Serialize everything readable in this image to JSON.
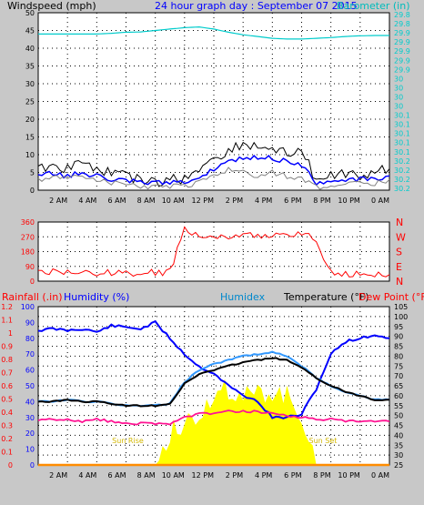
{
  "chart_data": [
    {
      "type": "line",
      "title": "24 hour graph day : September 07 2015",
      "left_axis_label": "Windspeed (mph)",
      "right_axis_label": "Barometer (in)",
      "x_tick_labels": [
        "2 AM",
        "4 AM",
        "6 AM",
        "8 AM",
        "10 AM",
        "12 PM",
        "2 PM",
        "4 PM",
        "6 PM",
        "8 PM",
        "10 PM",
        "0 AM"
      ],
      "left_ticks": [
        0,
        5,
        10,
        15,
        20,
        25,
        30,
        35,
        40,
        45,
        50
      ],
      "right_ticks": [
        "29.8",
        "29.8",
        "29.9",
        "29.9",
        "29.9",
        "29.9",
        "29.9",
        "30",
        "30",
        "30",
        "30",
        "30.1",
        "30.1",
        "30.1",
        "30.1",
        "30.1",
        "30.2",
        "30.2",
        "30.2",
        "30.2"
      ],
      "ylim": [
        0,
        50
      ],
      "x_hours": [
        0,
        1,
        2,
        3,
        4,
        5,
        6,
        7,
        8,
        9,
        10,
        11,
        12,
        13,
        14,
        15,
        16,
        17,
        18,
        19,
        20,
        21,
        22,
        23,
        24
      ],
      "series": [
        {
          "color": "#000000",
          "values": [
            6,
            7,
            6,
            8,
            6,
            5,
            4,
            3,
            2,
            3,
            3,
            6,
            9,
            11,
            13,
            12,
            12,
            10,
            11,
            3,
            4,
            5,
            4,
            5,
            6
          ]
        },
        {
          "color": "#0000ff",
          "values": [
            4,
            5,
            4,
            5,
            4,
            3,
            3,
            2,
            2,
            2,
            2,
            4,
            6,
            8,
            9,
            9,
            9,
            8,
            7,
            2,
            2,
            3,
            3,
            3,
            4
          ]
        },
        {
          "color": "#808080",
          "values": [
            3,
            4,
            3,
            4,
            3,
            2,
            2,
            1,
            1,
            1,
            1,
            2,
            4,
            6,
            5,
            4,
            5,
            4,
            3,
            1,
            1,
            2,
            2,
            2,
            3
          ]
        },
        {
          "color": "#00cccc",
          "values": [
            44,
            44,
            44,
            44,
            44,
            44.2,
            44.5,
            44.6,
            45,
            45.4,
            45.8,
            46,
            45.4,
            44.5,
            43.8,
            43.3,
            42.8,
            42.6,
            42.6,
            42.8,
            43,
            43.3,
            43.5,
            43.6,
            43.6
          ]
        }
      ]
    },
    {
      "type": "line",
      "title": "",
      "right_labels": [
        "N",
        "W",
        "S",
        "E",
        "N"
      ],
      "left_ticks": [
        0,
        90,
        180,
        270,
        360
      ],
      "ylim": [
        0,
        360
      ],
      "x_hours": [
        0,
        1,
        2,
        3,
        4,
        5,
        6,
        7,
        8,
        9,
        10,
        11,
        12,
        13,
        14,
        15,
        16,
        17,
        18,
        19,
        20,
        21,
        22,
        23,
        24
      ],
      "series": [
        {
          "color": "#ff0000",
          "values": [
            52,
            55,
            50,
            55,
            50,
            52,
            50,
            50,
            52,
            55,
            315,
            280,
            270,
            275,
            270,
            285,
            275,
            290,
            280,
            260,
            45,
            48,
            40,
            45,
            40
          ]
        }
      ]
    },
    {
      "type": "line",
      "axis_labels": [
        "Rainfall (.in)",
        "Humidity (%)",
        "Humidex",
        "Temperature (°F)",
        "Dew Point (°F)"
      ],
      "axis_label_colors": [
        "#ff0000",
        "#0000ff",
        "#0088cc",
        "#000000",
        "#ff0000"
      ],
      "rain_ticks": [
        0,
        0.1,
        0.2,
        0.3,
        0.4,
        0.5,
        0.6,
        0.7,
        0.8,
        0.9,
        1,
        1.1,
        1.2
      ],
      "humidity_ticks": [
        0,
        10,
        20,
        30,
        40,
        50,
        60,
        70,
        80,
        90,
        100
      ],
      "temp_ticks": [
        25,
        30,
        35,
        40,
        45,
        50,
        55,
        60,
        65,
        70,
        75,
        80,
        85,
        90,
        95,
        100,
        105
      ],
      "temp_ylim": [
        25,
        105
      ],
      "x_tick_labels": [
        "2 AM",
        "4 AM",
        "6 AM",
        "8 AM",
        "10 AM",
        "12 PM",
        "2 PM",
        "4 PM",
        "6 PM",
        "8 PM",
        "10 PM",
        "0 AM"
      ],
      "sun_rise_label": "Sun Rise",
      "sun_set_label": "Sun Set",
      "x_hours": [
        0,
        1,
        2,
        3,
        4,
        5,
        6,
        7,
        8,
        9,
        10,
        11,
        12,
        13,
        14,
        15,
        16,
        17,
        18,
        19,
        20,
        21,
        22,
        23,
        24
      ],
      "series": [
        {
          "color": "#0000ff",
          "values": [
            85,
            86,
            85,
            86,
            84,
            88,
            87,
            86,
            90,
            80,
            70,
            62,
            58,
            50,
            44,
            40,
            30,
            30,
            32,
            48,
            70,
            78,
            80,
            82,
            80
          ]
        },
        {
          "color": "#000000",
          "values": [
            57,
            57,
            58,
            57,
            57,
            56,
            55,
            55,
            55,
            56,
            66,
            71,
            73,
            75,
            77,
            78,
            79,
            78,
            74,
            69,
            65,
            62,
            60,
            58,
            58
          ]
        },
        {
          "color": "#3399ff",
          "values": [
            57,
            57,
            58,
            57,
            57,
            56,
            55,
            55,
            55,
            56,
            67,
            73,
            76,
            78,
            80,
            81,
            82,
            80,
            75,
            69,
            65,
            62,
            60,
            58,
            58
          ]
        },
        {
          "color": "#ff1493",
          "values": [
            48,
            48,
            48,
            47,
            48,
            47,
            46,
            46,
            46,
            46,
            49,
            51,
            51,
            52,
            52,
            52,
            51,
            50,
            49,
            48,
            48,
            47,
            47,
            47,
            47
          ]
        },
        {
          "color": "#ffff00",
          "fill": true,
          "values": [
            0,
            0,
            0,
            0,
            0,
            0,
            0,
            0,
            0,
            20,
            28,
            32,
            46,
            48,
            43,
            45,
            47,
            44,
            32,
            0,
            0,
            0,
            0,
            0,
            0
          ]
        },
        {
          "color": "#ff8c00",
          "values": [
            0,
            0,
            0,
            0,
            0,
            0,
            0,
            0,
            0,
            0,
            0,
            0,
            0,
            0,
            0,
            0,
            0,
            0,
            0,
            0,
            0,
            0,
            0,
            0,
            0
          ]
        }
      ]
    }
  ]
}
